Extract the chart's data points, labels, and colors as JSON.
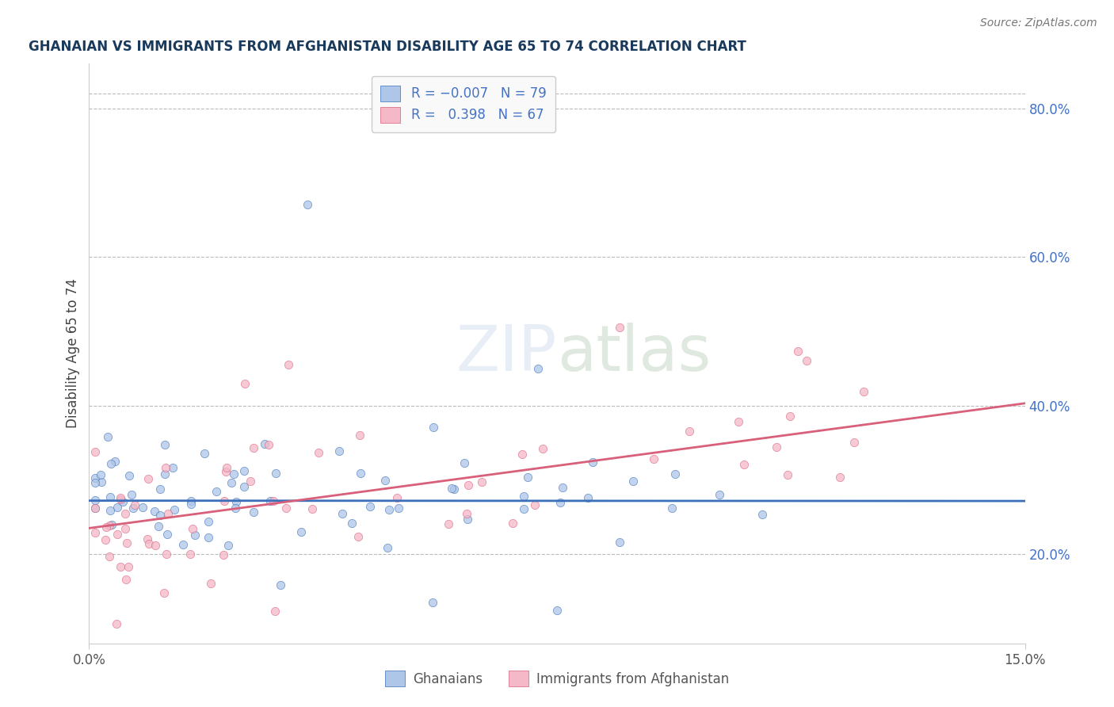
{
  "title": "GHANAIAN VS IMMIGRANTS FROM AFGHANISTAN DISABILITY AGE 65 TO 74 CORRELATION CHART",
  "source": "Source: ZipAtlas.com",
  "ylabel": "Disability Age 65 to 74",
  "xlim": [
    0.0,
    0.15
  ],
  "ylim": [
    0.08,
    0.86
  ],
  "ytick_right_labels": [
    "20.0%",
    "40.0%",
    "60.0%",
    "80.0%"
  ],
  "ytick_right_values": [
    0.2,
    0.4,
    0.6,
    0.8
  ],
  "color_blue": "#aec6e8",
  "color_pink": "#f4b8c8",
  "color_blue_line": "#3b6fba",
  "color_pink_line": "#d9607a",
  "color_title": "#1a3a5c",
  "color_source": "#777777",
  "color_right_axis": "#4472c4",
  "background_color": "#ffffff",
  "blue_line_y_intercept": 0.272,
  "blue_line_slope": -0.003,
  "pink_line_y_intercept": 0.235,
  "pink_line_slope": 1.12
}
